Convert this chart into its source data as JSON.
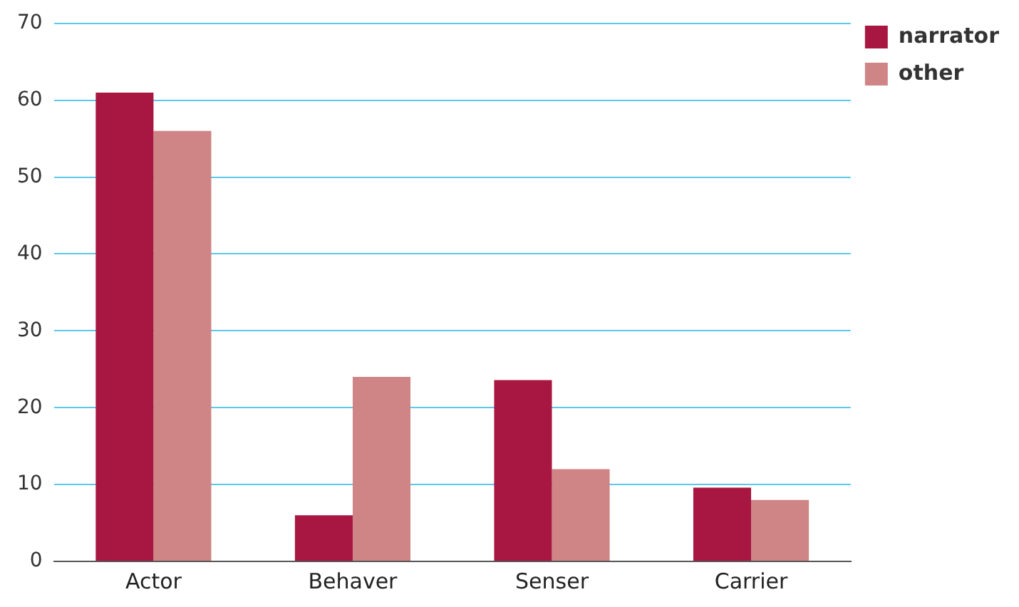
{
  "chart_data": {
    "type": "bar",
    "categories": [
      "Actor",
      "Behaver",
      "Senser",
      "Carrier"
    ],
    "series": [
      {
        "name": "narrator",
        "color": "#a81742",
        "values": [
          61,
          6,
          23.6,
          9.6
        ]
      },
      {
        "name": "other",
        "color": "#cf8585",
        "values": [
          56,
          24,
          12,
          8
        ]
      }
    ],
    "ylim": [
      0,
      70
    ],
    "yticks": [
      0,
      10,
      20,
      30,
      40,
      50,
      60,
      70
    ],
    "grid": "y",
    "legend": "top right"
  }
}
